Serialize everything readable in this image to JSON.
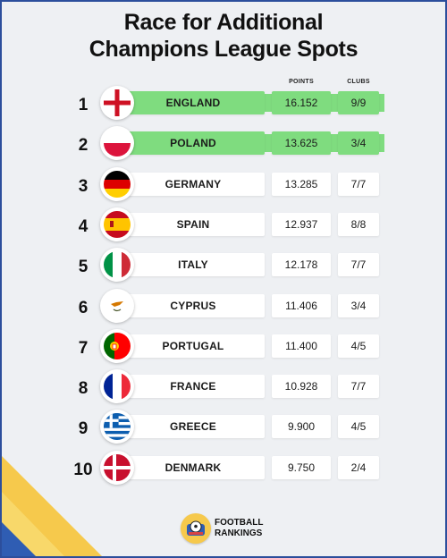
{
  "title": {
    "line1": "Race for Additional",
    "line2": "Champions League Spots"
  },
  "columns": {
    "points": "POINTS",
    "clubs": "CLUBS"
  },
  "colors": {
    "highlight": "#7fdc7f",
    "frame_border": "#2c4e9c",
    "stripe_yellow": "#f6c94c",
    "stripe_blue": "#2f5db3"
  },
  "rows": [
    {
      "rank": "1",
      "country": "ENGLAND",
      "points": "16.152",
      "clubs": "9/9",
      "flag": "england-flag-icon",
      "highlighted": true
    },
    {
      "rank": "2",
      "country": "POLAND",
      "points": "13.625",
      "clubs": "3/4",
      "flag": "poland-flag-icon",
      "highlighted": true
    },
    {
      "rank": "3",
      "country": "GERMANY",
      "points": "13.285",
      "clubs": "7/7",
      "flag": "germany-flag-icon",
      "highlighted": false
    },
    {
      "rank": "4",
      "country": "SPAIN",
      "points": "12.937",
      "clubs": "8/8",
      "flag": "spain-flag-icon",
      "highlighted": false
    },
    {
      "rank": "5",
      "country": "ITALY",
      "points": "12.178",
      "clubs": "7/7",
      "flag": "italy-flag-icon",
      "highlighted": false
    },
    {
      "rank": "6",
      "country": "CYPRUS",
      "points": "11.406",
      "clubs": "3/4",
      "flag": "cyprus-flag-icon",
      "highlighted": false
    },
    {
      "rank": "7",
      "country": "PORTUGAL",
      "points": "11.400",
      "clubs": "4/5",
      "flag": "portugal-flag-icon",
      "highlighted": false
    },
    {
      "rank": "8",
      "country": "FRANCE",
      "points": "10.928",
      "clubs": "7/7",
      "flag": "france-flag-icon",
      "highlighted": false
    },
    {
      "rank": "9",
      "country": "GREECE",
      "points": "9.900",
      "clubs": "4/5",
      "flag": "greece-flag-icon",
      "highlighted": false
    },
    {
      "rank": "10",
      "country": "DENMARK",
      "points": "9.750",
      "clubs": "2/4",
      "flag": "denmark-flag-icon",
      "highlighted": false
    }
  ],
  "logo": {
    "line1": "FOOTBALL",
    "line2": "RANKINGS",
    "icon": "football-rankings-logo-icon"
  }
}
